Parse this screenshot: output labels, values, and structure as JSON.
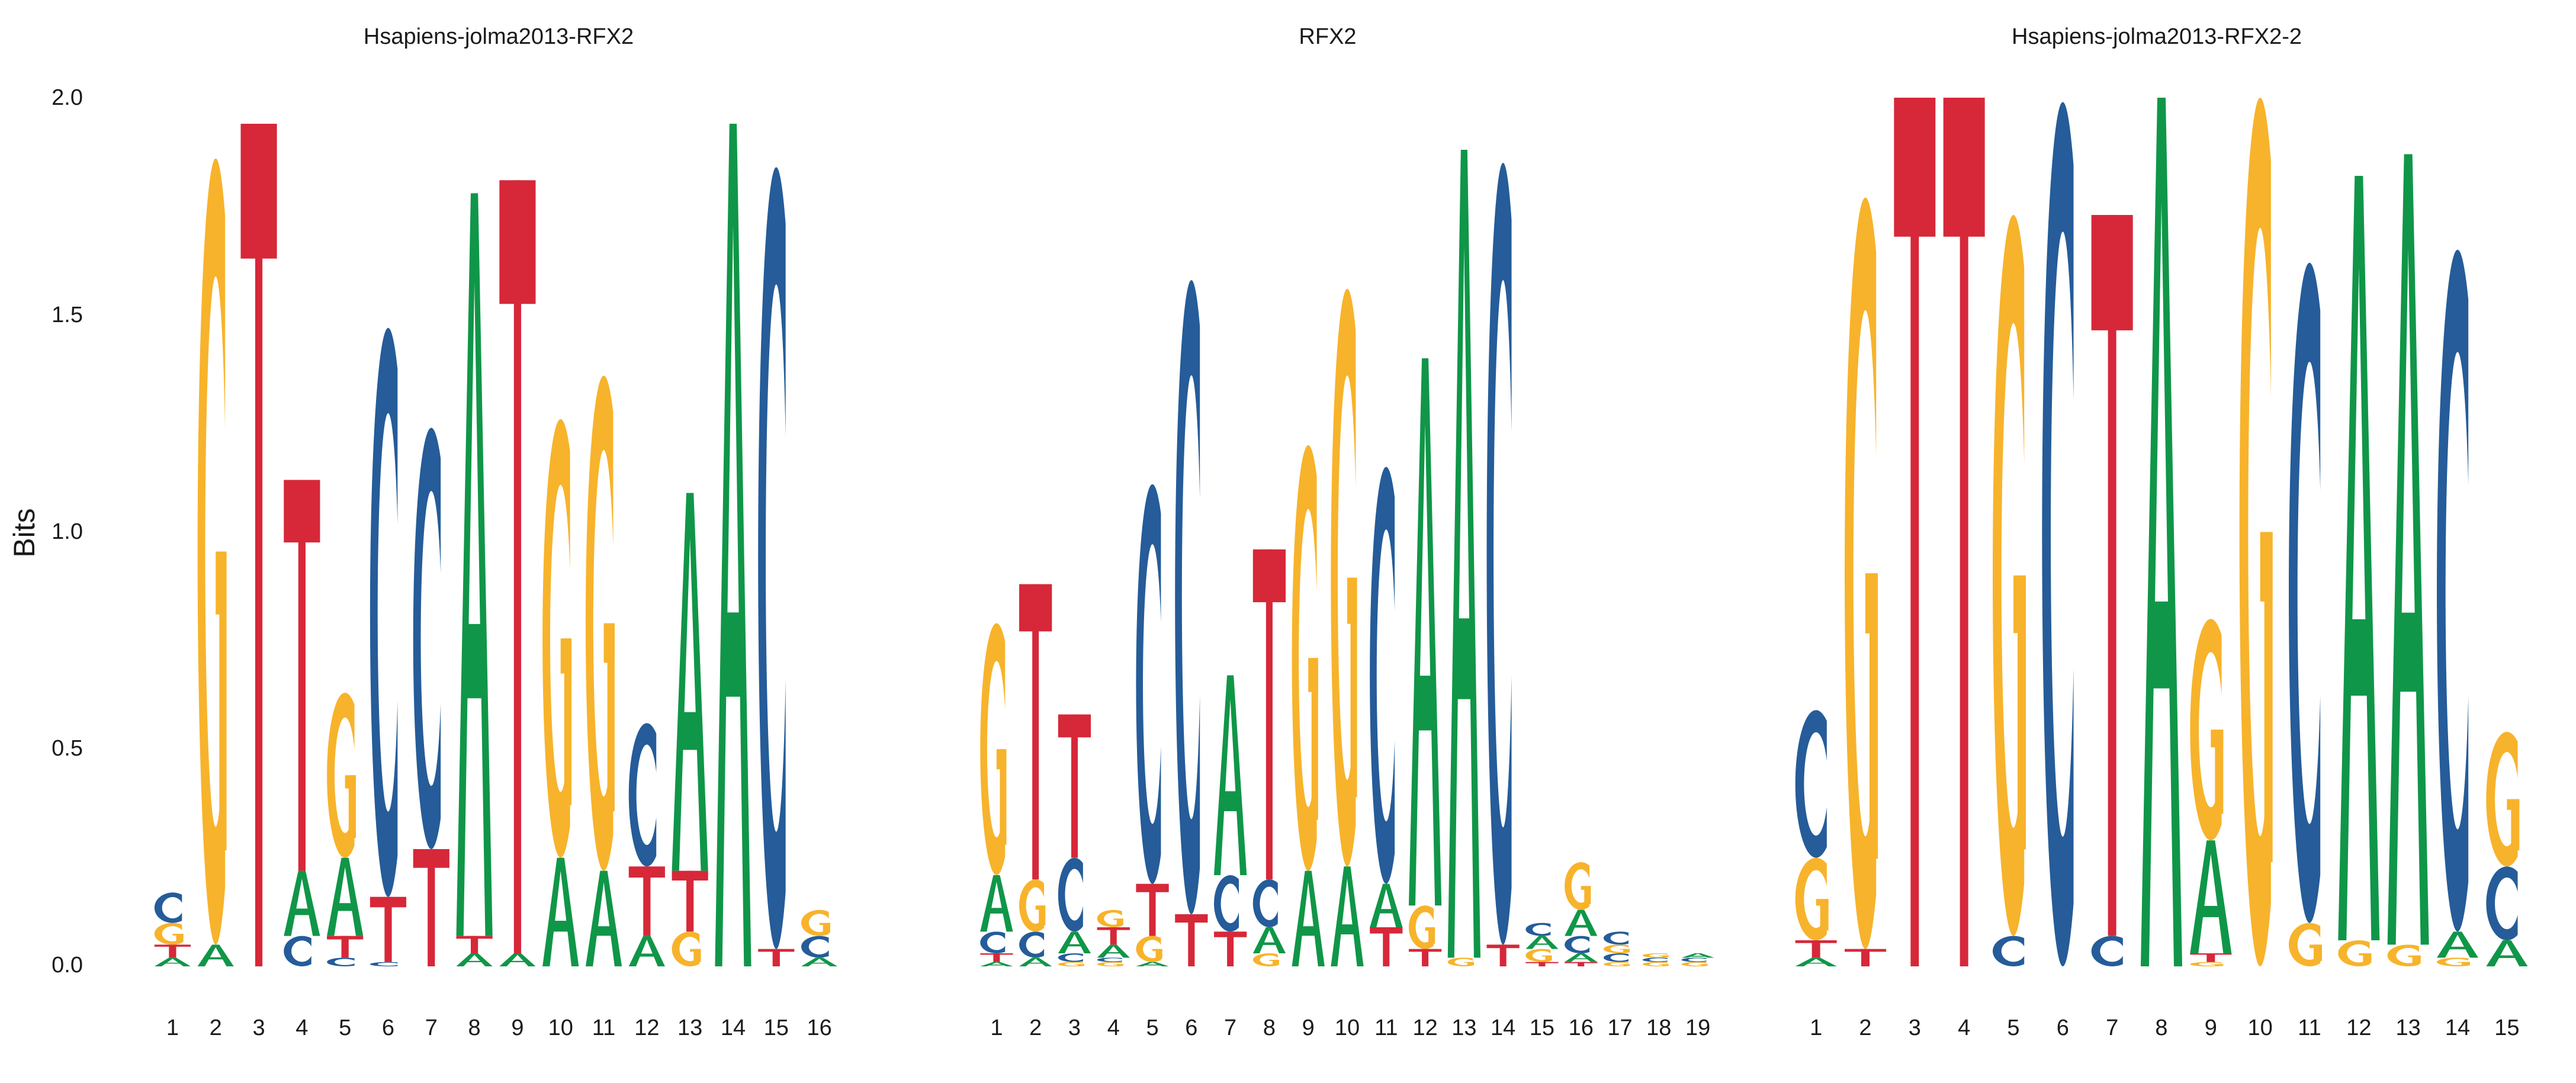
{
  "figure": {
    "ylabel": "Bits",
    "yticks": [
      "0.0",
      "0.5",
      "1.0",
      "1.5",
      "2.0"
    ]
  },
  "colors": {
    "A": "#109648",
    "C": "#255c99",
    "G": "#f7b32b",
    "T": "#d62839"
  },
  "chart_data": [
    {
      "type": "sequence-logo",
      "title": "Hsapiens-jolma2013-RFX2",
      "ylabel": "Bits",
      "ylim": [
        0,
        2
      ],
      "positions": [
        "1",
        "2",
        "3",
        "4",
        "5",
        "6",
        "7",
        "8",
        "9",
        "10",
        "11",
        "12",
        "13",
        "14",
        "15",
        "16"
      ],
      "stacks": [
        [
          [
            "A",
            0.02
          ],
          [
            "T",
            0.03
          ],
          [
            "G",
            0.05
          ],
          [
            "C",
            0.07
          ]
        ],
        [
          [
            "A",
            0.05
          ],
          [
            "G",
            1.81
          ]
        ],
        [
          [
            "T",
            1.94
          ]
        ],
        [
          [
            "C",
            0.07
          ],
          [
            "A",
            0.15
          ],
          [
            "T",
            0.9
          ]
        ],
        [
          [
            "C",
            0.02
          ],
          [
            "T",
            0.05
          ],
          [
            "A",
            0.18
          ],
          [
            "G",
            0.38
          ]
        ],
        [
          [
            "C",
            0.01
          ],
          [
            "T",
            0.15
          ],
          [
            "C",
            1.31
          ]
        ],
        [
          [
            "T",
            0.27
          ],
          [
            "C",
            0.97
          ]
        ],
        [
          [
            "A",
            0.03
          ],
          [
            "T",
            0.04
          ],
          [
            "A",
            1.71
          ]
        ],
        [
          [
            "A",
            0.03
          ],
          [
            "T",
            1.78
          ]
        ],
        [
          [
            "A",
            0.25
          ],
          [
            "G",
            1.01
          ]
        ],
        [
          [
            "A",
            0.22
          ],
          [
            "G",
            1.14
          ]
        ],
        [
          [
            "A",
            0.07
          ],
          [
            "T",
            0.16
          ],
          [
            "C",
            0.33
          ]
        ],
        [
          [
            "G",
            0.08
          ],
          [
            "T",
            0.14
          ],
          [
            "A",
            0.87
          ]
        ],
        [
          [
            "A",
            1.94
          ]
        ],
        [
          [
            "T",
            0.04
          ],
          [
            "C",
            1.8
          ]
        ],
        [
          [
            "A",
            0.02
          ],
          [
            "C",
            0.05
          ],
          [
            "G",
            0.06
          ]
        ]
      ]
    },
    {
      "type": "sequence-logo",
      "title": "RFX2",
      "ylim": [
        0,
        2
      ],
      "positions": [
        "1",
        "2",
        "3",
        "4",
        "5",
        "6",
        "7",
        "8",
        "9",
        "10",
        "11",
        "12",
        "13",
        "14",
        "15",
        "16",
        "17",
        "18",
        "19"
      ],
      "stacks": [
        [
          [
            "A",
            0.01
          ],
          [
            "T",
            0.02
          ],
          [
            "C",
            0.05
          ],
          [
            "A",
            0.13
          ],
          [
            "G",
            0.58
          ]
        ],
        [
          [
            "A",
            0.02
          ],
          [
            "C",
            0.06
          ],
          [
            "G",
            0.12
          ],
          [
            "T",
            0.68
          ]
        ],
        [
          [
            "G",
            0.01
          ],
          [
            "C",
            0.02
          ],
          [
            "A",
            0.05
          ],
          [
            "C",
            0.17
          ],
          [
            "T",
            0.33
          ]
        ],
        [
          [
            "G",
            0.01
          ],
          [
            "C",
            0.01
          ],
          [
            "A",
            0.03
          ],
          [
            "T",
            0.04
          ],
          [
            "G",
            0.04
          ]
        ],
        [
          [
            "A",
            0.01
          ],
          [
            "G",
            0.06
          ],
          [
            "T",
            0.12
          ],
          [
            "C",
            0.92
          ]
        ],
        [
          [
            "T",
            0.12
          ],
          [
            "C",
            1.46
          ]
        ],
        [
          [
            "T",
            0.08
          ],
          [
            "C",
            0.13
          ],
          [
            "A",
            0.46
          ]
        ],
        [
          [
            "G",
            0.03
          ],
          [
            "A",
            0.06
          ],
          [
            "C",
            0.11
          ],
          [
            "T",
            0.76
          ]
        ],
        [
          [
            "A",
            0.22
          ],
          [
            "G",
            0.98
          ]
        ],
        [
          [
            "A",
            0.23
          ],
          [
            "G",
            1.33
          ]
        ],
        [
          [
            "T",
            0.09
          ],
          [
            "A",
            0.1
          ],
          [
            "C",
            0.96
          ]
        ],
        [
          [
            "T",
            0.04
          ],
          [
            "G",
            0.1
          ],
          [
            "A",
            1.26
          ]
        ],
        [
          [
            "G",
            0.02
          ],
          [
            "A",
            1.86
          ]
        ],
        [
          [
            "T",
            0.05
          ],
          [
            "C",
            1.8
          ]
        ],
        [
          [
            "T",
            0.01
          ],
          [
            "G",
            0.03
          ],
          [
            "A",
            0.03
          ],
          [
            "C",
            0.03
          ]
        ],
        [
          [
            "T",
            0.01
          ],
          [
            "A",
            0.02
          ],
          [
            "C",
            0.04
          ],
          [
            "A",
            0.06
          ],
          [
            "G",
            0.11
          ]
        ],
        [
          [
            "G",
            0.01
          ],
          [
            "C",
            0.02
          ],
          [
            "G",
            0.02
          ],
          [
            "C",
            0.03
          ]
        ],
        [
          [
            "G",
            0.01
          ],
          [
            "C",
            0.01
          ],
          [
            "G",
            0.01
          ]
        ],
        [
          [
            "G",
            0.01
          ],
          [
            "C",
            0.01
          ],
          [
            "A",
            0.01
          ]
        ]
      ]
    },
    {
      "type": "sequence-logo",
      "title": "Hsapiens-jolma2013-RFX2-2",
      "ylim": [
        0,
        2
      ],
      "positions": [
        "1",
        "2",
        "3",
        "4",
        "5",
        "6",
        "7",
        "8",
        "9",
        "10",
        "11",
        "12",
        "13",
        "14",
        "15"
      ],
      "stacks": [
        [
          [
            "A",
            0.02
          ],
          [
            "T",
            0.04
          ],
          [
            "G",
            0.19
          ],
          [
            "C",
            0.34
          ]
        ],
        [
          [
            "T",
            0.04
          ],
          [
            "G",
            1.73
          ]
        ],
        [
          [
            "T",
            2.0
          ]
        ],
        [
          [
            "T",
            2.0
          ]
        ],
        [
          [
            "C",
            0.07
          ],
          [
            "G",
            1.66
          ]
        ],
        [
          [
            "C",
            1.99
          ]
        ],
        [
          [
            "C",
            0.07
          ],
          [
            "T",
            1.66
          ]
        ],
        [
          [
            "A",
            2.0
          ]
        ],
        [
          [
            "G",
            0.01
          ],
          [
            "T",
            0.02
          ],
          [
            "A",
            0.26
          ],
          [
            "G",
            0.51
          ]
        ],
        [
          [
            "G",
            2.0
          ]
        ],
        [
          [
            "G",
            0.1
          ],
          [
            "C",
            1.52
          ]
        ],
        [
          [
            "G",
            0.06
          ],
          [
            "A",
            1.76
          ]
        ],
        [
          [
            "G",
            0.05
          ],
          [
            "A",
            1.82
          ]
        ],
        [
          [
            "G",
            0.02
          ],
          [
            "A",
            0.06
          ],
          [
            "C",
            1.57
          ]
        ],
        [
          [
            "A",
            0.06
          ],
          [
            "C",
            0.17
          ],
          [
            "G",
            0.31
          ]
        ]
      ]
    }
  ]
}
